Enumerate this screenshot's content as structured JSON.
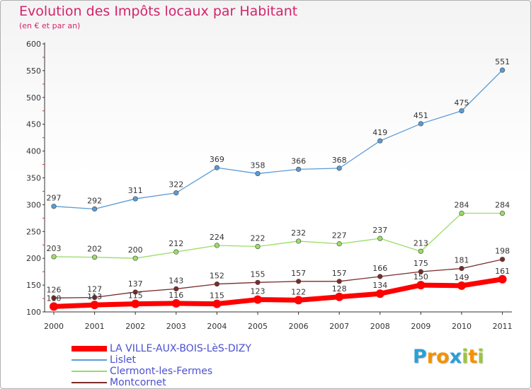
{
  "header": {
    "title": "Evolution des Impôts locaux par Habitant",
    "subtitle": "(en € et par an)"
  },
  "chart_data": {
    "type": "line",
    "x": [
      "2000",
      "2001",
      "2002",
      "2003",
      "2004",
      "2005",
      "2006",
      "2007",
      "2008",
      "2009",
      "2010",
      "2011"
    ],
    "ylim": [
      100,
      600
    ],
    "yticks": [
      100,
      150,
      200,
      250,
      300,
      350,
      400,
      450,
      500,
      550,
      600
    ],
    "grid": false,
    "legend_position": "bottom-left",
    "series": [
      {
        "name": "LA VILLE-AUX-BOIS-LèS-DIZY",
        "color": "#ff0000",
        "values": [
          110,
          113,
          115,
          116,
          115,
          123,
          122,
          128,
          134,
          150,
          149,
          161
        ],
        "labels": [
          "110",
          "113",
          "115",
          "116",
          "115",
          "123",
          "122",
          "128",
          "134",
          "150",
          "149",
          "161"
        ]
      },
      {
        "name": "Lislet",
        "color": "#5b9bd5",
        "values": [
          297,
          292,
          311,
          322,
          369,
          358,
          366,
          368,
          419,
          451,
          475,
          551
        ],
        "labels": [
          "297",
          "292",
          "311",
          "322",
          "369",
          "358",
          "366",
          "368",
          "419",
          "451",
          "475",
          "551"
        ]
      },
      {
        "name": "Clermont-les-Fermes",
        "color": "#99dd66",
        "values": [
          203,
          202,
          200,
          212,
          224,
          222,
          232,
          227,
          237,
          213,
          284,
          284
        ],
        "labels": [
          "203",
          "202",
          "200",
          "212",
          "224",
          "222",
          "232",
          "227",
          "237",
          "213",
          "284",
          "284"
        ]
      },
      {
        "name": "Montcornet",
        "color": "#7a2b2b",
        "values": [
          126,
          127,
          137,
          143,
          152,
          155,
          157,
          157,
          166,
          175,
          181,
          198
        ],
        "labels": [
          "126",
          "127",
          "137",
          "143",
          "152",
          "155",
          "157",
          "157",
          "166",
          "175",
          "181",
          "198"
        ]
      }
    ]
  },
  "logo": {
    "letters": [
      "P",
      "r",
      "o",
      "x",
      "i",
      "t",
      "i"
    ],
    "colors": [
      "#2a9fd6",
      "#f39200",
      "#f39200",
      "#2a9fd6",
      "#9bc53d",
      "#f39200",
      "#9bc53d"
    ]
  }
}
